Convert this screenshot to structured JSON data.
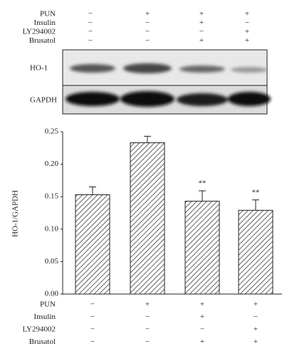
{
  "blot": {
    "treatments": [
      {
        "name": "PUN",
        "signs": [
          "−",
          "+",
          "+",
          "+"
        ]
      },
      {
        "name": "Insulin",
        "signs": [
          "−",
          "−",
          "+",
          "−"
        ]
      },
      {
        "name": "LY294002",
        "signs": [
          "−",
          "−",
          "−",
          "+"
        ]
      },
      {
        "name": "Brusatol",
        "signs": [
          "−",
          "−",
          "+",
          "+"
        ]
      }
    ],
    "bands": [
      "HO-1",
      "GAPDH"
    ]
  },
  "chart_data": {
    "type": "bar",
    "y_label": "HO-1/GAPDH",
    "treatments": [
      {
        "name": "PUN",
        "signs": [
          "−",
          "+",
          "+",
          "+"
        ]
      },
      {
        "name": "Insulin",
        "signs": [
          "−",
          "−",
          "+",
          "−"
        ]
      },
      {
        "name": "LY294002",
        "signs": [
          "−",
          "−",
          "−",
          "+"
        ]
      },
      {
        "name": "Brusatol",
        "signs": [
          "−",
          "−",
          "+",
          "+"
        ]
      }
    ],
    "values": [
      0.153,
      0.233,
      0.143,
      0.129
    ],
    "errors": [
      0.012,
      0.01,
      0.016,
      0.016
    ],
    "significance": [
      null,
      null,
      "**",
      "**"
    ],
    "color": "#222222",
    "ylim": [
      0,
      0.25
    ],
    "yticks": [
      {
        "value": 0,
        "label": "0.00"
      },
      {
        "value": 0.05,
        "label": "0.05"
      },
      {
        "value": 0.1,
        "label": "0.10"
      },
      {
        "value": 0.15,
        "label": "0.15"
      },
      {
        "value": 0.2,
        "label": "0.20"
      },
      {
        "value": 0.25,
        "label": "0.25"
      }
    ]
  }
}
